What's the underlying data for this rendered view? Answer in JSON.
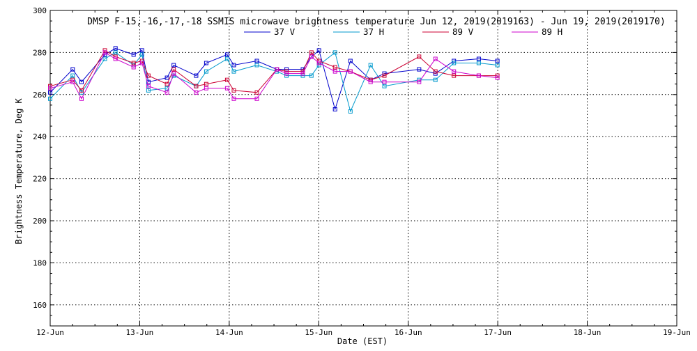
{
  "chart_data": {
    "type": "line",
    "title": "DMSP F-15,-16,-17,-18 SSMIS microwave brightness temperature Jun 12, 2019(2019163) - Jun 19, 2019(2019170)",
    "xlabel": "Date (EST)",
    "ylabel": "Brightness Temperature, Deg K",
    "xlim": [
      "2019-06-12",
      "2019-06-19"
    ],
    "x_ticks": [
      "12-Jun",
      "13-Jun",
      "14-Jun",
      "15-Jun",
      "16-Jun",
      "17-Jun",
      "18-Jun",
      "19-Jun"
    ],
    "ylim": [
      150,
      300
    ],
    "y_ticks": [
      160,
      180,
      200,
      220,
      240,
      260,
      280,
      300
    ],
    "grid": true,
    "legend_position": "top",
    "series": [
      {
        "name": "37 V",
        "color": "#0000cc",
        "x": [
          "2019-06-12 00:00",
          "2019-06-12 06:02",
          "2019-06-12 08:24",
          "2019-06-12 14:40",
          "2019-06-12 17:31",
          "2019-06-12 22:22",
          "2019-06-13 00:38",
          "2019-06-13 02:20",
          "2019-06-13 07:19",
          "2019-06-13 09:07",
          "2019-06-13 15:08",
          "2019-06-13 17:50",
          "2019-06-13 23:27",
          "2019-06-14 01:14",
          "2019-06-14 07:24",
          "2019-06-14 12:46",
          "2019-06-14 15:22",
          "2019-06-14 19:44",
          "2019-06-14 22:02",
          "2019-06-15 00:05",
          "2019-06-15 04:22",
          "2019-06-15 08:30",
          "2019-06-15 13:54",
          "2019-06-15 17:36",
          "2019-06-16 02:55",
          "2019-06-16 07:17",
          "2019-06-16 12:14",
          "2019-06-16 18:54",
          "2019-06-16 23:54"
        ],
        "values": [
          261,
          272,
          266,
          279,
          282,
          279,
          281,
          266,
          268,
          274,
          269,
          275,
          279,
          274,
          276,
          272,
          272,
          272,
          278,
          281,
          253,
          276,
          267,
          270,
          272,
          270,
          276,
          277,
          276
        ]
      },
      {
        "name": "37 H",
        "color": "#0099cc",
        "x": [
          "2019-06-12 00:00",
          "2019-06-12 06:02",
          "2019-06-12 08:24",
          "2019-06-12 14:40",
          "2019-06-12 17:31",
          "2019-06-12 22:22",
          "2019-06-13 00:38",
          "2019-06-13 02:20",
          "2019-06-13 07:19",
          "2019-06-13 09:07",
          "2019-06-13 15:08",
          "2019-06-13 17:50",
          "2019-06-13 23:27",
          "2019-06-14 01:14",
          "2019-06-14 07:24",
          "2019-06-14 12:46",
          "2019-06-14 15:22",
          "2019-06-14 19:44",
          "2019-06-14 22:02",
          "2019-06-15 00:05",
          "2019-06-15 04:22",
          "2019-06-15 08:30",
          "2019-06-15 13:54",
          "2019-06-15 17:36",
          "2019-06-16 02:55",
          "2019-06-16 07:17",
          "2019-06-16 12:14",
          "2019-06-16 18:54",
          "2019-06-16 23:54"
        ],
        "values": [
          258,
          269,
          261,
          277,
          280,
          274,
          279,
          262,
          263,
          269,
          264,
          271,
          277,
          271,
          274,
          271,
          269,
          269,
          269,
          274,
          280,
          252,
          274,
          264,
          267,
          267,
          275,
          275,
          274
        ]
      },
      {
        "name": "89 V",
        "color": "#cc0033",
        "x": [
          "2019-06-12 00:00",
          "2019-06-12 06:02",
          "2019-06-12 08:24",
          "2019-06-12 14:40",
          "2019-06-12 17:31",
          "2019-06-12 22:22",
          "2019-06-13 00:38",
          "2019-06-13 02:20",
          "2019-06-13 07:19",
          "2019-06-13 09:07",
          "2019-06-13 15:08",
          "2019-06-13 17:50",
          "2019-06-13 23:27",
          "2019-06-14 01:14",
          "2019-06-14 07:24",
          "2019-06-14 12:46",
          "2019-06-14 15:22",
          "2019-06-14 19:44",
          "2019-06-14 22:02",
          "2019-06-15 00:05",
          "2019-06-15 04:22",
          "2019-06-15 08:30",
          "2019-06-15 13:54",
          "2019-06-15 17:36",
          "2019-06-16 02:55",
          "2019-06-16 07:17",
          "2019-06-16 12:14",
          "2019-06-16 18:54",
          "2019-06-16 23:54"
        ],
        "values": [
          264,
          267,
          262,
          281,
          278,
          275,
          276,
          269,
          265,
          272,
          264,
          265,
          267,
          262,
          261,
          272,
          271,
          271,
          280,
          276,
          273,
          271,
          267,
          269,
          278,
          271,
          269,
          269,
          269
        ]
      },
      {
        "name": "89 H",
        "color": "#cc00cc",
        "x": [
          "2019-06-12 00:00",
          "2019-06-12 06:02",
          "2019-06-12 08:24",
          "2019-06-12 14:40",
          "2019-06-12 17:31",
          "2019-06-12 22:22",
          "2019-06-13 00:38",
          "2019-06-13 02:20",
          "2019-06-13 07:19",
          "2019-06-13 09:07",
          "2019-06-13 15:08",
          "2019-06-13 17:50",
          "2019-06-13 23:27",
          "2019-06-14 01:14",
          "2019-06-14 07:24",
          "2019-06-14 12:46",
          "2019-06-14 15:22",
          "2019-06-14 19:44",
          "2019-06-14 22:02",
          "2019-06-15 00:05",
          "2019-06-15 04:22",
          "2019-06-15 08:30",
          "2019-06-15 13:54",
          "2019-06-15 17:36",
          "2019-06-16 02:55",
          "2019-06-16 07:17",
          "2019-06-16 12:14",
          "2019-06-16 18:54",
          "2019-06-16 23:54"
        ],
        "values": [
          263,
          266,
          258,
          280,
          277,
          273,
          275,
          264,
          261,
          270,
          261,
          263,
          263,
          258,
          258,
          272,
          270,
          270,
          278,
          275,
          271,
          271,
          266,
          266,
          266,
          277,
          271,
          269,
          268
        ]
      }
    ]
  }
}
